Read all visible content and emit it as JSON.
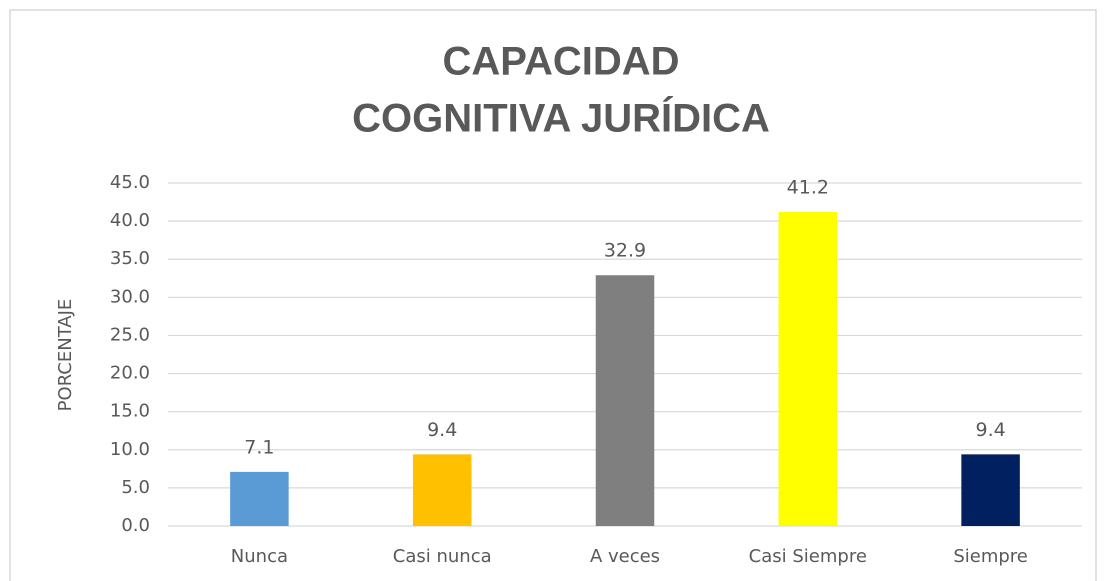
{
  "chart_data": {
    "type": "bar",
    "title": [
      "CAPACIDAD",
      "COGNITIVA JURÍDICA"
    ],
    "y_label": "PORCENTAJE",
    "categories": [
      "Nunca",
      "Casi nunca",
      "A veces",
      "Casi Siempre",
      "Siempre"
    ],
    "values": [
      7.1,
      9.4,
      32.9,
      41.2,
      9.4
    ],
    "colors": [
      "#5b9bd5",
      "#ffc000",
      "#7f7f7f",
      "#ffff00",
      "#002060"
    ],
    "ylim": [
      0,
      45
    ],
    "yticks": [
      {
        "value": 0,
        "label": "0.0"
      },
      {
        "value": 5,
        "label": "5.0"
      },
      {
        "value": 10,
        "label": "10.0"
      },
      {
        "value": 15,
        "label": "15.0"
      },
      {
        "value": 20,
        "label": "20.0"
      },
      {
        "value": 25,
        "label": "25.0"
      },
      {
        "value": 30,
        "label": "30.0"
      },
      {
        "value": 35,
        "label": "35.0"
      },
      {
        "value": 40,
        "label": "40.0"
      },
      {
        "value": 45,
        "label": "45.0"
      }
    ],
    "grid": true
  }
}
